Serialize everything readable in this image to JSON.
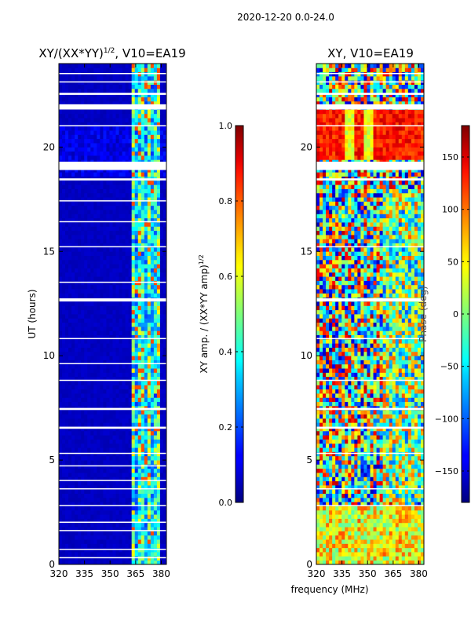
{
  "figure": {
    "suptitle": "2020-12-20 0.0-24.0",
    "xlabel": "frequency (MHz)"
  },
  "chart_data": [
    {
      "type": "heatmap",
      "title": "XY/(XX*YY)",
      "title_sup": "1/2",
      "title_tail": ", V10=EA19",
      "x": {
        "label": "",
        "range": [
          320,
          383
        ],
        "ticks": [
          320,
          335,
          350,
          365,
          380
        ]
      },
      "y": {
        "label": "UT (hours)",
        "range": [
          0,
          24
        ],
        "ticks": [
          0,
          5,
          10,
          15,
          20
        ]
      },
      "colorbar": {
        "label": "XY amp. / (XX*YY amp)",
        "label_sup": "1/2",
        "range": [
          0.0,
          1.0
        ],
        "ticks": [
          "0.0",
          "0.2",
          "0.4",
          "0.6",
          "0.8",
          "1.0"
        ],
        "tick_values": [
          0.0,
          0.2,
          0.4,
          0.6,
          0.8,
          1.0
        ],
        "colormap": "jet"
      },
      "bright_channel_band_mhz": [
        362,
        380
      ],
      "data_gaps_ut_hours": [
        [
          0.3,
          0.35
        ],
        [
          0.7,
          0.75
        ],
        [
          1.6,
          1.65
        ],
        [
          2.0,
          2.05
        ],
        [
          2.8,
          2.85
        ],
        [
          3.6,
          3.65
        ],
        [
          4.0,
          4.05
        ],
        [
          4.7,
          4.75
        ],
        [
          5.3,
          5.35
        ],
        [
          6.5,
          6.6
        ],
        [
          7.4,
          7.5
        ],
        [
          8.8,
          8.85
        ],
        [
          9.6,
          9.65
        ],
        [
          10.8,
          10.85
        ],
        [
          12.6,
          12.75
        ],
        [
          13.5,
          13.55
        ],
        [
          15.2,
          15.25
        ],
        [
          16.4,
          16.45
        ],
        [
          17.4,
          17.45
        ],
        [
          18.4,
          18.5
        ],
        [
          18.9,
          19.3
        ],
        [
          21.0,
          21.05
        ],
        [
          21.8,
          22.05
        ],
        [
          22.5,
          22.6
        ],
        [
          23.1,
          23.15
        ],
        [
          23.5,
          23.55
        ]
      ]
    },
    {
      "type": "heatmap",
      "title": "XY, V10=EA19",
      "x": {
        "label": "frequency (MHz)",
        "range": [
          320,
          383
        ],
        "ticks": [
          320,
          335,
          350,
          365,
          380
        ]
      },
      "y": {
        "label": "",
        "range": [
          0,
          24
        ],
        "ticks": [
          0,
          5,
          10,
          15,
          20
        ]
      },
      "colorbar": {
        "label": "Phase (deg)",
        "range": [
          -180,
          180
        ],
        "ticks": [
          "−150",
          "−100",
          "−50",
          "0",
          "50",
          "100",
          "150"
        ],
        "tick_values": [
          -150,
          -100,
          -50,
          0,
          50,
          100,
          150
        ],
        "colormap": "jet"
      },
      "data_gaps_ut_hours": [
        [
          2.8,
          2.85
        ],
        [
          3.6,
          3.65
        ],
        [
          5.3,
          5.35
        ],
        [
          6.5,
          6.6
        ],
        [
          7.4,
          7.5
        ],
        [
          8.8,
          8.85
        ],
        [
          10.8,
          10.85
        ],
        [
          12.6,
          12.75
        ],
        [
          15.2,
          15.25
        ],
        [
          18.4,
          18.5
        ],
        [
          18.9,
          19.3
        ],
        [
          21.0,
          21.05
        ],
        [
          21.8,
          22.05
        ],
        [
          22.5,
          22.6
        ],
        [
          23.1,
          23.15
        ],
        [
          23.5,
          23.55
        ]
      ]
    }
  ]
}
